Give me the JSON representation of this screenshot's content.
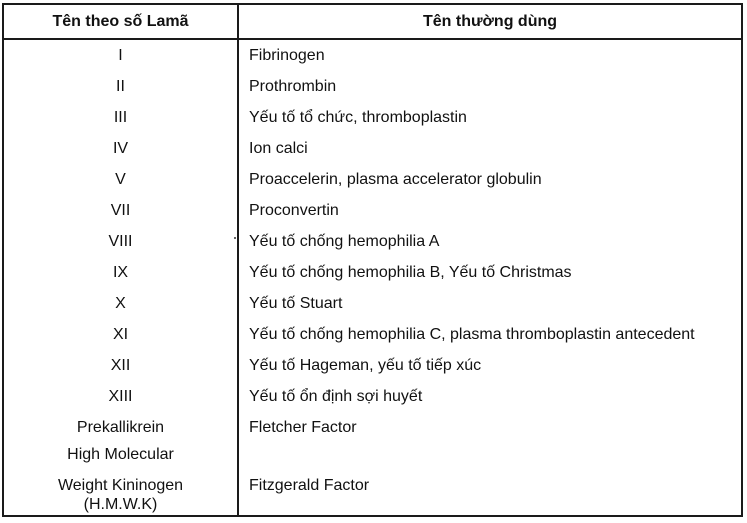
{
  "table": {
    "headers": {
      "roman": "Tên theo số Lamã",
      "common": "Tên thường dùng"
    },
    "rows": [
      {
        "roman": "I",
        "common": "Fibrinogen"
      },
      {
        "roman": "II",
        "common": "Prothrombin"
      },
      {
        "roman": "III",
        "common": "Yếu tố tổ chức, thromboplastin"
      },
      {
        "roman": "IV",
        "common": "Ion calci"
      },
      {
        "roman": "V",
        "common": "Proaccelerin, plasma accelerator globulin"
      },
      {
        "roman": "VII",
        "common": "Proconvertin"
      },
      {
        "roman": "VIII",
        "common": "Yếu tố chống hemophilia A"
      },
      {
        "roman": "IX",
        "common": "Yếu tố chống hemophilia B, Yếu tố Christmas"
      },
      {
        "roman": "X",
        "common": "Yếu tố Stuart"
      },
      {
        "roman": "XI",
        "common": "Yếu tố chống hemophilia C, plasma thromboplastin antecedent"
      },
      {
        "roman": "XII",
        "common": "Yếu tố Hageman, yếu tố tiếp xúc"
      },
      {
        "roman": "XIII",
        "common": "Yếu tố ổn định sợi huyết"
      },
      {
        "roman": "Prekallikrein",
        "common": "Fletcher Factor"
      }
    ],
    "hmwk": {
      "line1": "High Molecular",
      "line2": "Weight Kininogen",
      "line3": "(H.M.W.K)",
      "common": "Fitzgerald Factor"
    }
  }
}
